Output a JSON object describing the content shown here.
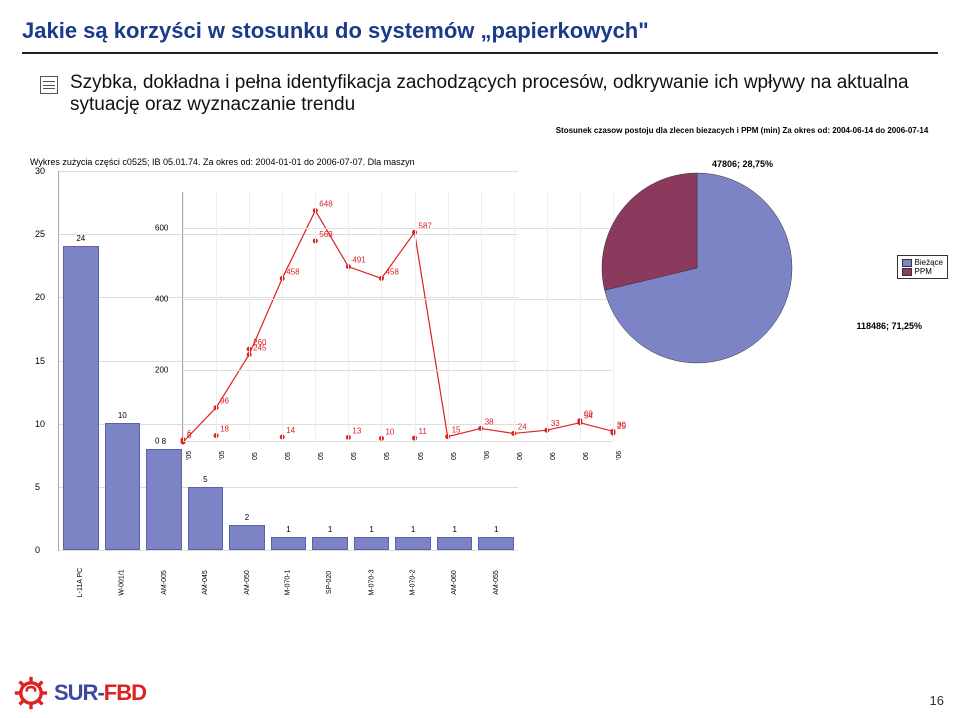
{
  "title": "Jakie są korzyści w stosunku do systemów „papierkowych\"",
  "bullet": "Szybka, dokładna i pełna identyfikacja zachodzących procesów, odkrywanie ich wpływy na aktualna sytuację oraz wyznaczanie trendu",
  "page_number": "16",
  "logo": {
    "part1": "SUR-",
    "part2": "FBD"
  },
  "bar_chart": {
    "title": "Wykres zużycia części    c0525;  IB 05.01.74. Za okres od: 2004-01-01 do 2006-07-07. Dla maszyn",
    "ymax": 30,
    "ytick_step": 5,
    "bar_color": "#7c84c5",
    "categories": [
      "L-11A PC",
      "W-001/1",
      "AM-005",
      "AM-045",
      "AM-050",
      "M-070-1",
      "SP-020",
      "M-070-3",
      "M-070-2",
      "AM-060",
      "AM-055"
    ],
    "values": [
      24,
      10,
      8,
      5,
      2,
      1,
      1,
      1,
      1,
      1,
      1
    ]
  },
  "line_chart": {
    "ymax": 700,
    "yticks": [
      0,
      200,
      400,
      600
    ],
    "x_labels": [
      "'05",
      "'05",
      "05",
      "05",
      "05",
      "05",
      "05",
      "05",
      "05",
      "'06",
      "06",
      "06",
      "06",
      "'06"
    ],
    "series": {
      "color": "#d22",
      "points": [
        {
          "x": 0,
          "y": 0,
          "label": "0"
        },
        {
          "x": 1,
          "y": 96,
          "label": "96"
        },
        {
          "x": 2,
          "y": 245,
          "label": "245"
        },
        {
          "x": 3,
          "y": 458,
          "label": "458"
        },
        {
          "x": 4,
          "y": 648,
          "label": "648"
        },
        {
          "x": 5,
          "y": 491,
          "label": "491"
        },
        {
          "x": 6,
          "y": 458,
          "label": "458"
        },
        {
          "x": 7,
          "y": 587,
          "label": "587"
        },
        {
          "x": 8,
          "y": 15,
          "label": "15"
        },
        {
          "x": 9,
          "y": 38,
          "label": "38"
        },
        {
          "x": 10,
          "y": 24,
          "label": "24"
        },
        {
          "x": 11,
          "y": 33,
          "label": "33"
        },
        {
          "x": 12,
          "y": 54,
          "label": "54"
        },
        {
          "x": 13,
          "y": 30,
          "label": "30"
        }
      ],
      "line2_points": [
        {
          "x": 0,
          "y": 6,
          "label": "6"
        },
        {
          "x": 1,
          "y": 18,
          "label": "18"
        },
        {
          "x": 2,
          "y": 260,
          "label": "260"
        },
        {
          "x": 3,
          "y": 14,
          "label": "14"
        },
        {
          "x": 4,
          "y": 563,
          "label": "563"
        },
        {
          "x": 5,
          "y": 13,
          "label": "13"
        },
        {
          "x": 6,
          "y": 10,
          "label": "10"
        },
        {
          "x": 7,
          "y": 11,
          "label": "11"
        },
        {
          "x": 12,
          "y": 60,
          "label": "60"
        },
        {
          "x": 13,
          "y": 25,
          "label": "25"
        }
      ]
    }
  },
  "pie_chart": {
    "title": "Stosunek czasow postoju dla zlecen biezacych i PPM (min) Za okres od: 2004-06-14 do 2006-07-14",
    "slices": [
      {
        "label": "118486; 71,25%",
        "value": 71.25,
        "color": "#7c84c5"
      },
      {
        "label": "47806; 28,75%",
        "value": 28.75,
        "color": "#8b3a5e"
      }
    ],
    "legend": [
      "Bieżące",
      "PPM"
    ],
    "legend_colors": [
      "#7c84c5",
      "#8b3a5e"
    ]
  }
}
